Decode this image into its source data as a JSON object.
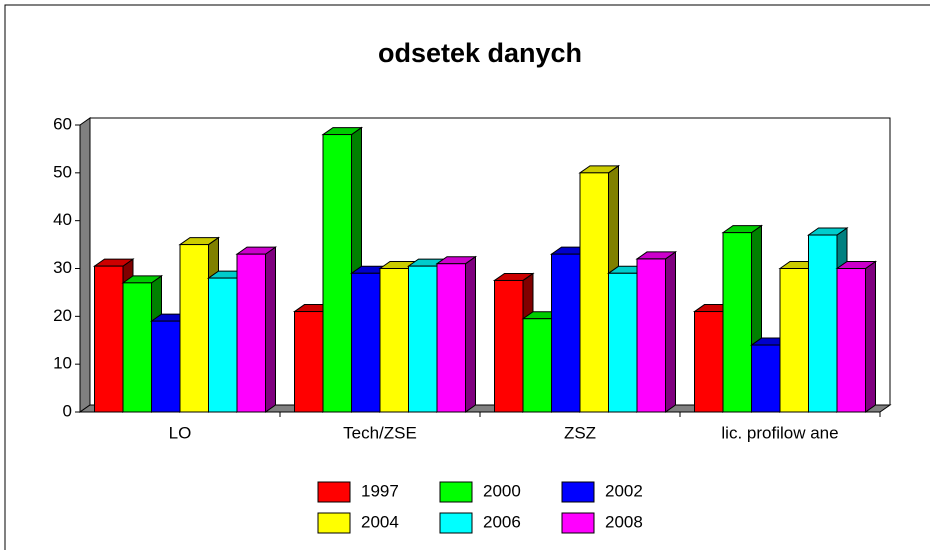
{
  "chart_data": {
    "type": "bar3d",
    "title": "odsetek danych",
    "categories": [
      "LO",
      "Tech/ZSE",
      "ZSZ",
      "lic. profilow ane"
    ],
    "series": [
      {
        "name": "1997",
        "color": "#ff0000",
        "values": [
          30.5,
          21,
          27.5,
          21
        ]
      },
      {
        "name": "2000",
        "color": "#00ff00",
        "values": [
          27,
          58,
          19.5,
          37.5
        ]
      },
      {
        "name": "2002",
        "color": "#0000ff",
        "values": [
          19,
          29,
          33,
          14
        ]
      },
      {
        "name": "2004",
        "color": "#ffff00",
        "values": [
          35,
          30,
          50,
          30
        ]
      },
      {
        "name": "2006",
        "color": "#00ffff",
        "values": [
          28,
          30.5,
          29,
          37
        ]
      },
      {
        "name": "2008",
        "color": "#ff00ff",
        "values": [
          33,
          31,
          32,
          30
        ]
      }
    ],
    "ylim": [
      0,
      60
    ],
    "yticks": [
      0,
      10,
      20,
      30,
      40,
      50,
      60
    ]
  }
}
